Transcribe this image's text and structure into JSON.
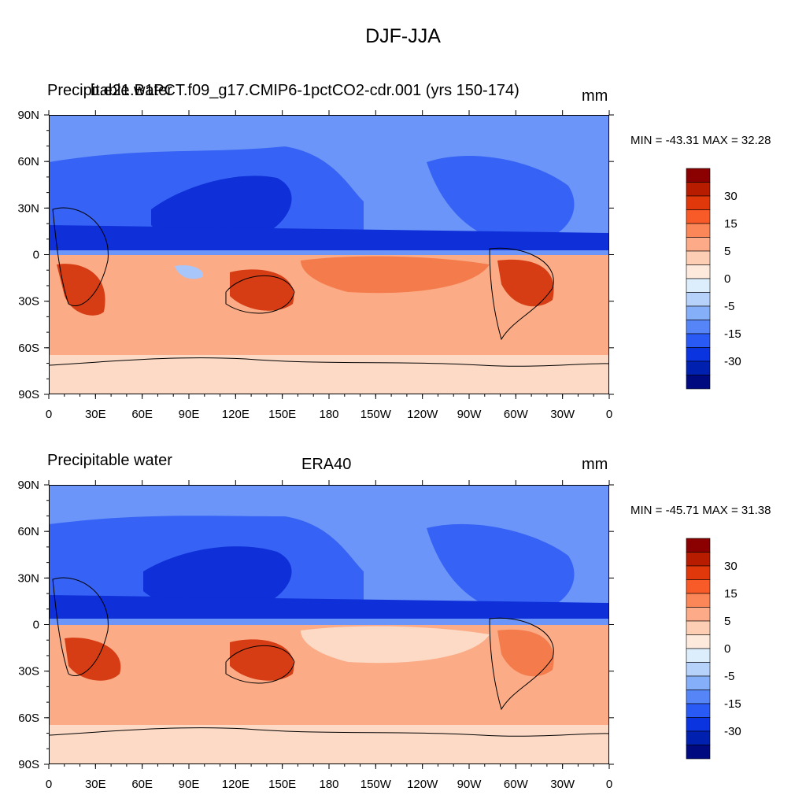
{
  "figure": {
    "title": "DJF-JJA"
  },
  "panels": [
    {
      "left_title": "Precipitable water",
      "center_title": "b.e21.B1PCT.f09_g17.CMIP6-1pctCO2-cdr.001 (yrs 150-174)",
      "units": "mm",
      "stats": "MIN = -43.31 MAX =  32.28"
    },
    {
      "left_title": "Precipitable water",
      "center_title": "ERA40",
      "units": "mm",
      "stats": "MIN = -45.71 MAX =  31.38"
    }
  ],
  "axes": {
    "lat_labels": [
      "90N",
      "60N",
      "30N",
      "0",
      "30S",
      "60S",
      "90S"
    ],
    "lon_labels": [
      "0",
      "30E",
      "60E",
      "90E",
      "120E",
      "150E",
      "180",
      "150W",
      "120W",
      "90W",
      "60W",
      "30W",
      "0"
    ]
  },
  "colorbar": {
    "labels": [
      "30",
      "15",
      "5",
      "0",
      "-5",
      "-15",
      "-30"
    ],
    "colors": [
      "#8b0000",
      "#b81c00",
      "#e0380a",
      "#f85a28",
      "#fb8658",
      "#fcaa88",
      "#fdcdb4",
      "#feeadc",
      "#dceefc",
      "#b6d2fb",
      "#86aff9",
      "#5585f7",
      "#2a5af5",
      "#0a34e0",
      "#0020b0",
      "#000a80"
    ]
  },
  "map_colors": {
    "pos_strong": "#d63d14",
    "pos_mid": "#f47b4b",
    "pos_light": "#fbac86",
    "pos_pale": "#fddac6",
    "neg_strong": "#0f2fd8",
    "neg_mid": "#3663f5",
    "neg_light": "#6b95f8",
    "neg_pale": "#a9c6fb",
    "land_outline": "#000000"
  }
}
